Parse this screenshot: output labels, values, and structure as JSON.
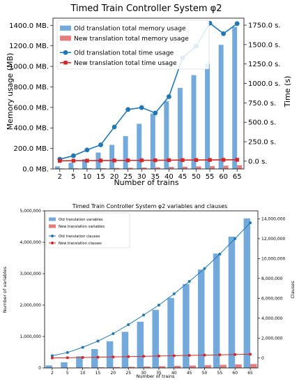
{
  "chart_data": [
    {
      "type": "bar",
      "title": "Timed Train Controller System φ2",
      "xlabel": "Number of trains",
      "ylabel": "Memory usage (MB)",
      "y2label": "Time (s)",
      "categories": [
        "2",
        "5",
        "10",
        "15",
        "20",
        "25",
        "30",
        "35",
        "40",
        "45",
        "50",
        "55",
        "60",
        "65"
      ],
      "ylim": [
        0,
        1470
      ],
      "y2lim": [
        -100,
        1840
      ],
      "yticks": [
        0,
        200,
        400,
        600,
        800,
        1000,
        1200,
        1400
      ],
      "yticklabels": [
        "0.0 MB.",
        "200.0 MB.",
        "400.0 MB.",
        "600.0 MB.",
        "800.0 MB.",
        "1000.0 MB.",
        "1200.0 MB.",
        "1400.0 MB."
      ],
      "y2ticks": [
        0,
        250,
        500,
        750,
        1000,
        1250,
        1500,
        1750
      ],
      "y2ticklabels": [
        "0.0 s.",
        "250.0 s.",
        "500.0 s.",
        "750.0 s.",
        "1000.0 s.",
        "1250.0 s.",
        "1500.0 s.",
        "1750.0 s."
      ],
      "bar_series": [
        {
          "name": "Old translation total memory usage",
          "axis": "left",
          "color": "#5b9bd5",
          "values": [
            25,
            60,
            95,
            160,
            235,
            320,
            440,
            540,
            660,
            790,
            915,
            1025,
            1210,
            1385
          ]
        },
        {
          "name": "New translation total memory usage",
          "axis": "left",
          "color": "#e06666",
          "values": [
            5,
            6,
            7,
            8,
            10,
            12,
            14,
            16,
            20,
            22,
            25,
            28,
            32,
            36
          ]
        }
      ],
      "line_series": [
        {
          "name": "Old translation total time usage",
          "axis": "right",
          "color": "#1f77b4",
          "marker": "circle",
          "values": [
            25,
            70,
            145,
            210,
            440,
            665,
            690,
            620,
            830,
            1330,
            1480,
            1775,
            1640,
            1770
          ]
        },
        {
          "name": "New translation total time usage",
          "axis": "right",
          "color": "#d62728",
          "marker": "square",
          "values": [
            5,
            6,
            7,
            8,
            9,
            10,
            11,
            12,
            13,
            14,
            15,
            16,
            17,
            18
          ]
        }
      ],
      "legend_position": "top-left",
      "grid": false
    },
    {
      "type": "bar",
      "title": "Timed Train Controller System φ2 variables and clauses",
      "xlabel": "Number of trains",
      "ylabel": "Number of variables",
      "y2label": "Clauses",
      "categories": [
        "2",
        "5",
        "10",
        "15",
        "20",
        "25",
        "30",
        "35",
        "40",
        "45",
        "50",
        "55",
        "60",
        "65"
      ],
      "ylim": [
        0,
        5000000
      ],
      "y2lim": [
        -1000000,
        14800000
      ],
      "yticks": [
        0,
        1000000,
        2000000,
        3000000,
        4000000,
        5000000
      ],
      "yticklabels": [
        "0",
        "1,000,000",
        "2,000,000",
        "3,000,000",
        "4,000,000",
        "5,000,000"
      ],
      "y2ticks": [
        0,
        2000000,
        4000000,
        6000000,
        8000000,
        10000000,
        12000000,
        14000000
      ],
      "y2ticklabels": [
        "0",
        "2,000,000",
        "4,000,000",
        "6,000,000",
        "8,000,000",
        "10,000,000",
        "12,000,000",
        "14,000,000"
      ],
      "bar_series": [
        {
          "name": "Old translation variables",
          "axis": "left",
          "color": "#5b9bd5",
          "values": [
            80000,
            180000,
            370000,
            600000,
            850000,
            1150000,
            1470000,
            1850000,
            2230000,
            2670000,
            3130000,
            3640000,
            4180000,
            4760000
          ]
        },
        {
          "name": "New translation variables",
          "axis": "left",
          "color": "#e06666",
          "values": [
            5000,
            9000,
            16000,
            22000,
            30000,
            38000,
            47000,
            56000,
            66000,
            76000,
            87000,
            99000,
            112000,
            125000
          ]
        }
      ],
      "line_series": [
        {
          "name": "Old translation clauses",
          "axis": "right",
          "color": "#1f77b4",
          "marker": "circle",
          "values": [
            230000,
            550000,
            1070000,
            1700000,
            2450000,
            3350000,
            4320000,
            5320000,
            6450000,
            7700000,
            9000000,
            10450000,
            12000000,
            13600000
          ]
        },
        {
          "name": "New translation clauses",
          "axis": "right",
          "color": "#d62728",
          "marker": "circle",
          "values": [
            10000,
            25000,
            50000,
            80000,
            110000,
            140000,
            170000,
            200000,
            230000,
            260000,
            290000,
            320000,
            350000,
            380000
          ]
        }
      ],
      "legend_position": "top-left",
      "grid": false
    }
  ]
}
